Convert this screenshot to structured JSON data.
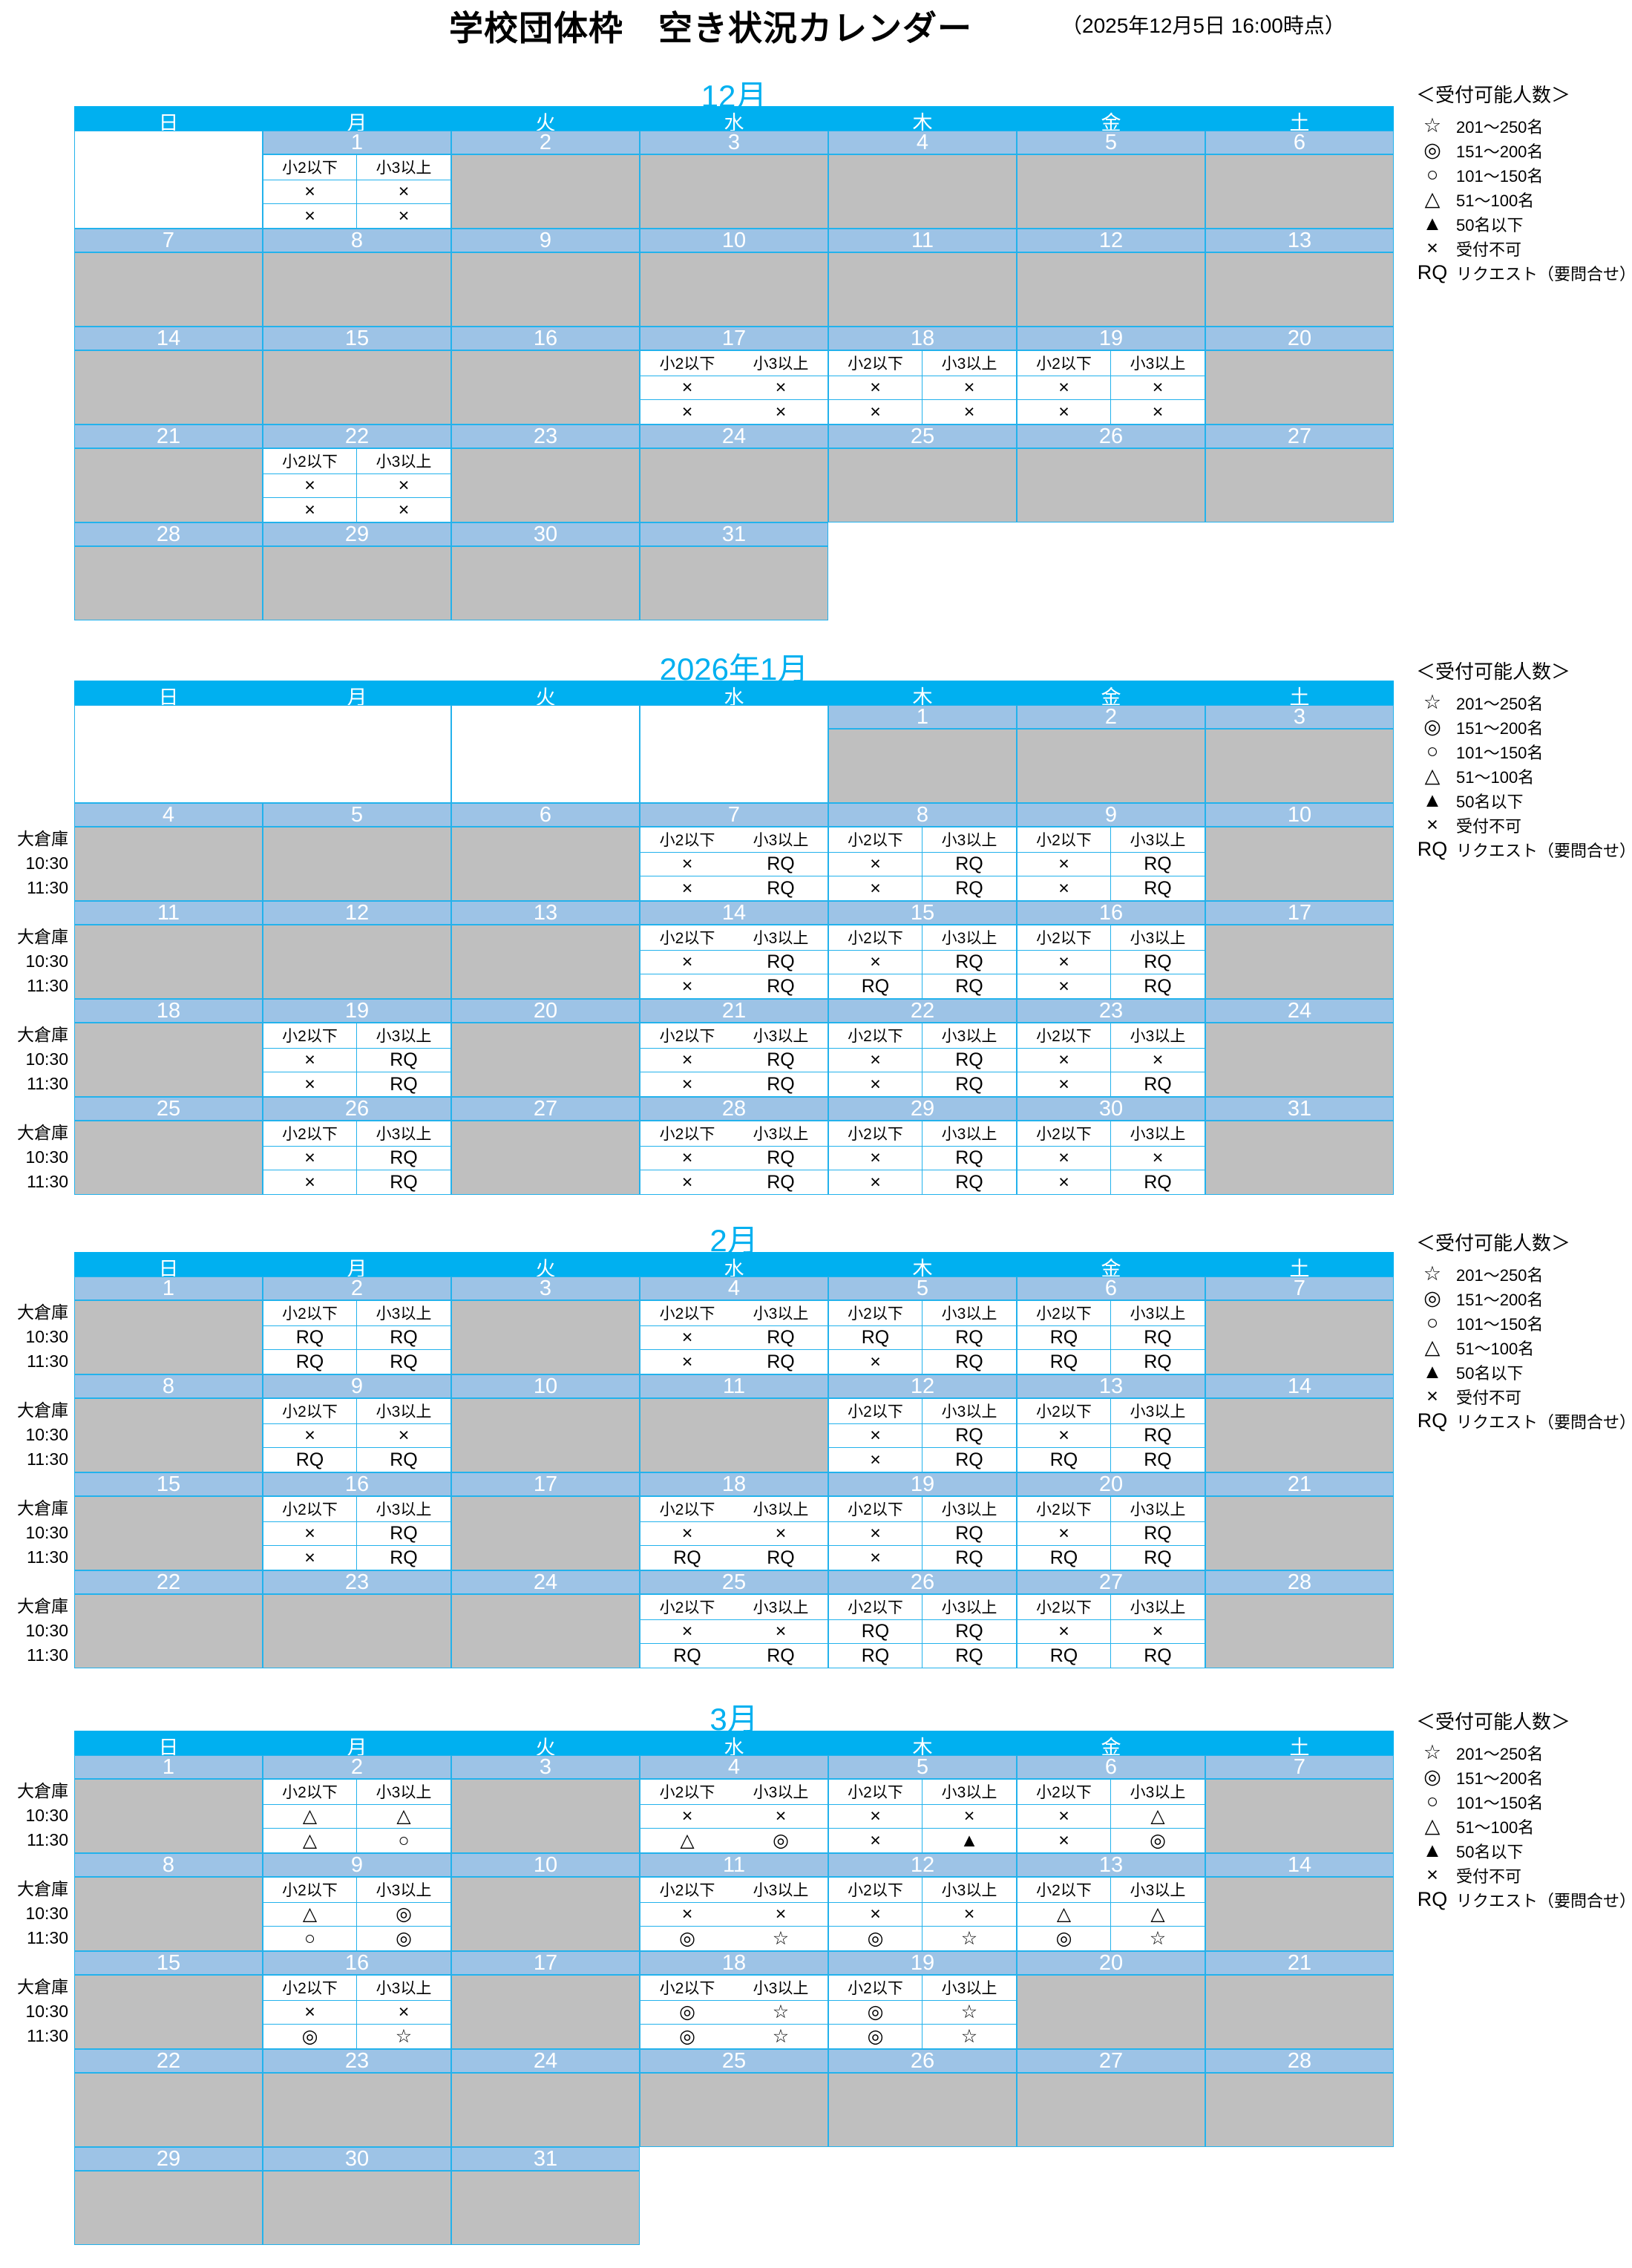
{
  "page": {
    "title": "学校団体枠　空き状況カレンダー",
    "as_of": "（2025年12月5日  16:00時点）"
  },
  "colors": {
    "header_cyan": "#00B0F0",
    "day_number_blue": "#9DC3E6",
    "unavailable_gray": "#BFBFBF",
    "grid_border": "#23b2ec"
  },
  "weekdays": [
    "日",
    "月",
    "火",
    "水",
    "木",
    "金",
    "土"
  ],
  "subcols": [
    "小2以下",
    "小3以上"
  ],
  "room_label": "大倉庫",
  "times": [
    "10:30",
    "11:30"
  ],
  "legend": {
    "title": "＜受付可能人数＞",
    "items": [
      {
        "symbol": "☆",
        "label": "201～250名"
      },
      {
        "symbol": "◎",
        "label": "151～200名"
      },
      {
        "symbol": "○",
        "label": "101～150名"
      },
      {
        "symbol": "△",
        "label": "51～100名"
      },
      {
        "symbol": "▲",
        "label": "50名以下"
      },
      {
        "symbol": "×",
        "label": "受付不可"
      },
      {
        "symbol": "RQ",
        "label": "リクエスト（要問合せ）"
      }
    ]
  },
  "months": [
    {
      "title": "12月",
      "weeks": [
        {
          "labels": false,
          "cells": [
            {
              "b": 1
            },
            {
              "d": 1,
              "s": [
                [
                  "×",
                  "×"
                ],
                [
                  "×",
                  "×"
                ]
              ]
            },
            {
              "d": 2
            },
            {
              "d": 3
            },
            {
              "d": 4
            },
            {
              "d": 5
            },
            {
              "d": 6
            }
          ]
        },
        {
          "labels": false,
          "cells": [
            {
              "d": 7
            },
            {
              "d": 8
            },
            {
              "d": 9
            },
            {
              "d": 10
            },
            {
              "d": 11
            },
            {
              "d": 12
            },
            {
              "d": 13
            }
          ]
        },
        {
          "labels": false,
          "cells": [
            {
              "d": 14
            },
            {
              "d": 15
            },
            {
              "d": 16
            },
            {
              "d": 17,
              "s": [
                [
                  "×",
                  "×"
                ],
                [
                  "×",
                  "×"
                ]
              ]
            },
            {
              "d": 18,
              "s": [
                [
                  "×",
                  "×"
                ],
                [
                  "×",
                  "×"
                ]
              ]
            },
            {
              "d": 19,
              "s": [
                [
                  "×",
                  "×"
                ],
                [
                  "×",
                  "×"
                ]
              ]
            },
            {
              "d": 20
            }
          ]
        },
        {
          "labels": false,
          "cells": [
            {
              "d": 21
            },
            {
              "d": 22,
              "s": [
                [
                  "×",
                  "×"
                ],
                [
                  "×",
                  "×"
                ]
              ]
            },
            {
              "d": 23
            },
            {
              "d": 24
            },
            {
              "d": 25
            },
            {
              "d": 26
            },
            {
              "d": 27
            }
          ]
        },
        {
          "labels": false,
          "cells": [
            {
              "d": 28
            },
            {
              "d": 29
            },
            {
              "d": 30
            },
            {
              "d": 31
            }
          ]
        }
      ]
    },
    {
      "title": "2026年1月",
      "weeks": [
        {
          "labels": false,
          "cells": [
            {
              "b": 2
            },
            {
              "b": 1
            },
            {
              "b": 1
            },
            {
              "d": 1
            },
            {
              "d": 2
            },
            {
              "d": 3
            }
          ]
        },
        {
          "labels": true,
          "cells": [
            {
              "d": 4
            },
            {
              "d": 5
            },
            {
              "d": 6
            },
            {
              "d": 7,
              "s": [
                [
                  "×",
                  "RQ"
                ],
                [
                  "×",
                  "RQ"
                ]
              ]
            },
            {
              "d": 8,
              "s": [
                [
                  "×",
                  "RQ"
                ],
                [
                  "×",
                  "RQ"
                ]
              ]
            },
            {
              "d": 9,
              "s": [
                [
                  "×",
                  "RQ"
                ],
                [
                  "×",
                  "RQ"
                ]
              ]
            },
            {
              "d": 10
            }
          ]
        },
        {
          "labels": true,
          "cells": [
            {
              "d": 11
            },
            {
              "d": 12
            },
            {
              "d": 13
            },
            {
              "d": 14,
              "s": [
                [
                  "×",
                  "RQ"
                ],
                [
                  "×",
                  "RQ"
                ]
              ]
            },
            {
              "d": 15,
              "s": [
                [
                  "×",
                  "RQ"
                ],
                [
                  "RQ",
                  "RQ"
                ]
              ]
            },
            {
              "d": 16,
              "s": [
                [
                  "×",
                  "RQ"
                ],
                [
                  "×",
                  "RQ"
                ]
              ]
            },
            {
              "d": 17
            }
          ]
        },
        {
          "labels": true,
          "cells": [
            {
              "d": 18
            },
            {
              "d": 19,
              "s": [
                [
                  "×",
                  "RQ"
                ],
                [
                  "×",
                  "RQ"
                ]
              ]
            },
            {
              "d": 20
            },
            {
              "d": 21,
              "s": [
                [
                  "×",
                  "RQ"
                ],
                [
                  "×",
                  "RQ"
                ]
              ]
            },
            {
              "d": 22,
              "s": [
                [
                  "×",
                  "RQ"
                ],
                [
                  "×",
                  "RQ"
                ]
              ]
            },
            {
              "d": 23,
              "s": [
                [
                  "×",
                  "×"
                ],
                [
                  "×",
                  "RQ"
                ]
              ]
            },
            {
              "d": 24
            }
          ]
        },
        {
          "labels": true,
          "cells": [
            {
              "d": 25
            },
            {
              "d": 26,
              "s": [
                [
                  "×",
                  "RQ"
                ],
                [
                  "×",
                  "RQ"
                ]
              ]
            },
            {
              "d": 27
            },
            {
              "d": 28,
              "s": [
                [
                  "×",
                  "RQ"
                ],
                [
                  "×",
                  "RQ"
                ]
              ]
            },
            {
              "d": 29,
              "s": [
                [
                  "×",
                  "RQ"
                ],
                [
                  "×",
                  "RQ"
                ]
              ]
            },
            {
              "d": 30,
              "s": [
                [
                  "×",
                  "×"
                ],
                [
                  "×",
                  "RQ"
                ]
              ]
            },
            {
              "d": 31
            }
          ]
        }
      ]
    },
    {
      "title": "2月",
      "weeks": [
        {
          "labels": true,
          "cells": [
            {
              "d": 1
            },
            {
              "d": 2,
              "s": [
                [
                  "RQ",
                  "RQ"
                ],
                [
                  "RQ",
                  "RQ"
                ]
              ]
            },
            {
              "d": 3
            },
            {
              "d": 4,
              "s": [
                [
                  "×",
                  "RQ"
                ],
                [
                  "×",
                  "RQ"
                ]
              ]
            },
            {
              "d": 5,
              "s": [
                [
                  "RQ",
                  "RQ"
                ],
                [
                  "×",
                  "RQ"
                ]
              ]
            },
            {
              "d": 6,
              "s": [
                [
                  "RQ",
                  "RQ"
                ],
                [
                  "RQ",
                  "RQ"
                ]
              ]
            },
            {
              "d": 7
            }
          ]
        },
        {
          "labels": true,
          "cells": [
            {
              "d": 8
            },
            {
              "d": 9,
              "s": [
                [
                  "×",
                  "×"
                ],
                [
                  "RQ",
                  "RQ"
                ]
              ]
            },
            {
              "d": 10
            },
            {
              "d": 11
            },
            {
              "d": 12,
              "s": [
                [
                  "×",
                  "RQ"
                ],
                [
                  "×",
                  "RQ"
                ]
              ]
            },
            {
              "d": 13,
              "s": [
                [
                  "×",
                  "RQ"
                ],
                [
                  "RQ",
                  "RQ"
                ]
              ]
            },
            {
              "d": 14
            }
          ]
        },
        {
          "labels": true,
          "cells": [
            {
              "d": 15
            },
            {
              "d": 16,
              "s": [
                [
                  "×",
                  "RQ"
                ],
                [
                  "×",
                  "RQ"
                ]
              ]
            },
            {
              "d": 17
            },
            {
              "d": 18,
              "s": [
                [
                  "×",
                  "×"
                ],
                [
                  "RQ",
                  "RQ"
                ]
              ]
            },
            {
              "d": 19,
              "s": [
                [
                  "×",
                  "RQ"
                ],
                [
                  "×",
                  "RQ"
                ]
              ]
            },
            {
              "d": 20,
              "s": [
                [
                  "×",
                  "RQ"
                ],
                [
                  "RQ",
                  "RQ"
                ]
              ]
            },
            {
              "d": 21
            }
          ]
        },
        {
          "labels": true,
          "cells": [
            {
              "d": 22
            },
            {
              "d": 23
            },
            {
              "d": 24
            },
            {
              "d": 25,
              "s": [
                [
                  "×",
                  "×"
                ],
                [
                  "RQ",
                  "RQ"
                ]
              ]
            },
            {
              "d": 26,
              "s": [
                [
                  "RQ",
                  "RQ"
                ],
                [
                  "RQ",
                  "RQ"
                ]
              ]
            },
            {
              "d": 27,
              "s": [
                [
                  "×",
                  "×"
                ],
                [
                  "RQ",
                  "RQ"
                ]
              ]
            },
            {
              "d": 28
            }
          ]
        }
      ]
    },
    {
      "title": "3月",
      "weeks": [
        {
          "labels": true,
          "cells": [
            {
              "d": 1
            },
            {
              "d": 2,
              "s": [
                [
                  "△",
                  "△"
                ],
                [
                  "△",
                  "○"
                ]
              ]
            },
            {
              "d": 3
            },
            {
              "d": 4,
              "s": [
                [
                  "×",
                  "×"
                ],
                [
                  "△",
                  "◎"
                ]
              ]
            },
            {
              "d": 5,
              "s": [
                [
                  "×",
                  "×"
                ],
                [
                  "×",
                  "▲"
                ]
              ]
            },
            {
              "d": 6,
              "s": [
                [
                  "×",
                  "△"
                ],
                [
                  "×",
                  "◎"
                ]
              ]
            },
            {
              "d": 7
            }
          ]
        },
        {
          "labels": true,
          "cells": [
            {
              "d": 8
            },
            {
              "d": 9,
              "s": [
                [
                  "△",
                  "◎"
                ],
                [
                  "○",
                  "◎"
                ]
              ]
            },
            {
              "d": 10
            },
            {
              "d": 11,
              "s": [
                [
                  "×",
                  "×"
                ],
                [
                  "◎",
                  "☆"
                ]
              ]
            },
            {
              "d": 12,
              "s": [
                [
                  "×",
                  "×"
                ],
                [
                  "◎",
                  "☆"
                ]
              ]
            },
            {
              "d": 13,
              "s": [
                [
                  "△",
                  "△"
                ],
                [
                  "◎",
                  "☆"
                ]
              ]
            },
            {
              "d": 14
            }
          ]
        },
        {
          "labels": true,
          "cells": [
            {
              "d": 15
            },
            {
              "d": 16,
              "s": [
                [
                  "×",
                  "×"
                ],
                [
                  "◎",
                  "☆"
                ]
              ]
            },
            {
              "d": 17
            },
            {
              "d": 18,
              "s": [
                [
                  "◎",
                  "☆"
                ],
                [
                  "◎",
                  "☆"
                ]
              ]
            },
            {
              "d": 19,
              "s": [
                [
                  "◎",
                  "☆"
                ],
                [
                  "◎",
                  "☆"
                ]
              ]
            },
            {
              "d": 20
            },
            {
              "d": 21
            }
          ]
        },
        {
          "labels": false,
          "cells": [
            {
              "d": 22
            },
            {
              "d": 23
            },
            {
              "d": 24
            },
            {
              "d": 25
            },
            {
              "d": 26
            },
            {
              "d": 27
            },
            {
              "d": 28
            }
          ]
        },
        {
          "labels": false,
          "cells": [
            {
              "d": 29
            },
            {
              "d": 30
            },
            {
              "d": 31
            }
          ]
        }
      ]
    }
  ]
}
